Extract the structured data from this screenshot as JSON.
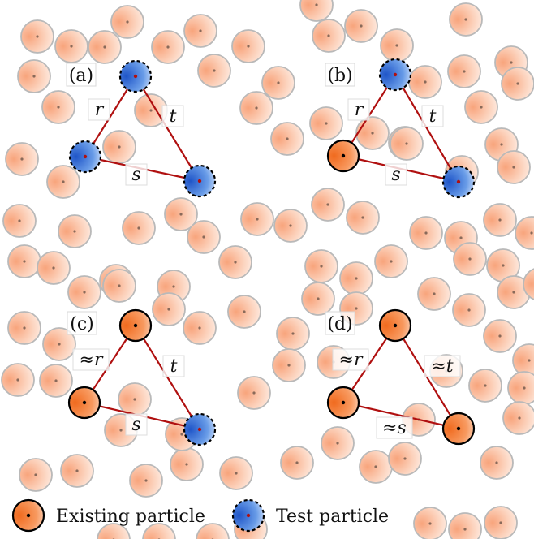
{
  "panels": [
    {
      "id": "a",
      "label": "(a)",
      "side_r": "r",
      "side_t": "t",
      "side_s": "s",
      "corners": [
        "test",
        "test",
        "test"
      ]
    },
    {
      "id": "b",
      "label": "(b)",
      "side_r": "r",
      "side_t": "t",
      "side_s": "s",
      "corners": [
        "test",
        "existing",
        "test"
      ]
    },
    {
      "id": "c",
      "label": "(c)",
      "side_r": "≈r",
      "side_t": "t",
      "side_s": "s",
      "corners": [
        "existing",
        "existing",
        "test"
      ]
    },
    {
      "id": "d",
      "label": "(d)",
      "side_r": "≈r",
      "side_t": "≈t",
      "side_s": "≈s",
      "corners": [
        "existing",
        "existing",
        "existing"
      ]
    }
  ],
  "legend": {
    "existing_label": "Existing particle",
    "test_label": "Test particle"
  },
  "colors": {
    "background_particle_fill": "#fcd9c4",
    "background_particle_stroke": "#b9b9b9",
    "existing_fill": "#f47a32",
    "test_fill": "#3d74d8",
    "triangle_edge": "#b01010"
  }
}
